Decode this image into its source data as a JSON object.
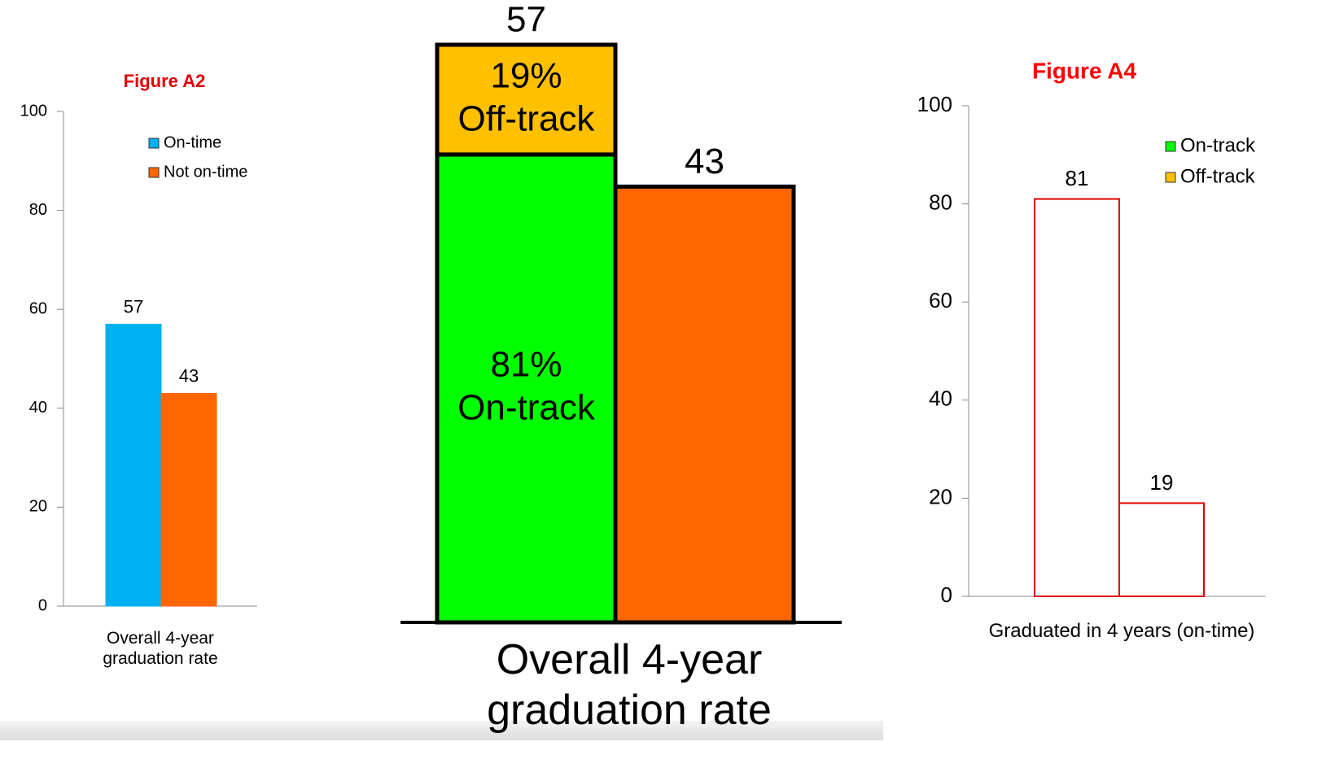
{
  "chart_data": [
    {
      "type": "bar",
      "title": "Figure A2",
      "title_color": "#e00000",
      "categories": [
        "Overall 4-year graduation rate"
      ],
      "series": [
        {
          "name": "On-time",
          "color": "#00b0f0",
          "values": [
            57
          ]
        },
        {
          "name": "Not on-time",
          "color": "#ff6600",
          "values": [
            43
          ]
        }
      ],
      "ylim": [
        0,
        100
      ],
      "yticks": [
        0,
        20,
        40,
        60,
        80,
        100
      ],
      "legend": "upper right"
    },
    {
      "type": "share_bar",
      "categories": [
        "Overall 4-year graduation rate"
      ],
      "edge_color": "#000000",
      "bars": [
        {
          "value": 57,
          "segments": [
            {
              "name": "On-track",
              "value": 81,
              "value_label": "81%",
              "color": "#00ff00"
            },
            {
              "name": "Off-track",
              "value": 19,
              "value_label": "19%",
              "color": "#ffc000"
            }
          ]
        },
        {
          "value": 43,
          "color": "#ff6600"
        }
      ]
    },
    {
      "type": "bar",
      "title": "Figure A4",
      "title_color": "#ff0000",
      "categories": [
        "Graduated in 4 years (on-time)"
      ],
      "bar_fill": "#ffffff",
      "bar_edge": "#e00000",
      "series": [
        {
          "name": "On-track",
          "color": "#00ff00",
          "values": [
            81
          ]
        },
        {
          "name": "Off-track",
          "color": "#ffc000",
          "values": [
            19
          ]
        }
      ],
      "ylim": [
        0,
        100
      ],
      "yticks": [
        0,
        20,
        40,
        60,
        80,
        100
      ],
      "legend": "right"
    }
  ]
}
